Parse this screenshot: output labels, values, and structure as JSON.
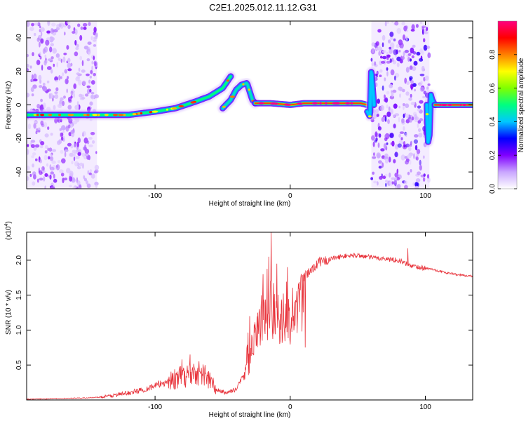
{
  "figure": {
    "title": "C2E1.2025.012.11.12.G31"
  },
  "chart_data": [
    {
      "type": "heatmap",
      "name": "spectrogram",
      "xlabel": "Height of straight line (km)",
      "ylabel": "Frequency (Hz)",
      "xlim": [
        -195,
        135
      ],
      "ylim": [
        -50,
        50
      ],
      "xticks": [
        -100,
        0,
        100
      ],
      "yticks": [
        -40,
        -20,
        0,
        20,
        40
      ],
      "grid": false,
      "colorbar": {
        "label": "Normalized spectral amplitude",
        "range": [
          0,
          1
        ],
        "ticks": [
          0.0,
          0.2,
          0.4,
          0.6,
          0.8
        ],
        "tick_labels": [
          "0.0",
          "0.2",
          "0.4",
          "0.6",
          "0.8"
        ],
        "colormap": [
          "#ffffff",
          "#c9a6ff",
          "#8000ff",
          "#0000ff",
          "#00c8ff",
          "#00ff80",
          "#80ff00",
          "#ffff00",
          "#ff8000",
          "#ff0000",
          "#ff0080"
        ]
      },
      "noise_regions": [
        {
          "x": [
            -195,
            -143
          ],
          "amplitude": 0.3
        },
        {
          "x": [
            60,
            103
          ],
          "amplitude": 0.4
        }
      ],
      "ridges": [
        {
          "x": [
            -195,
            -160,
            -140,
            -120,
            -100,
            -85,
            -70,
            -60,
            -50,
            -44
          ],
          "y": [
            -6,
            -6,
            -6,
            -6,
            -4,
            -2,
            2,
            5,
            10,
            17
          ],
          "amplitude": 0.5
        },
        {
          "x": [
            -50,
            -44,
            -40,
            -36,
            -32,
            -28,
            -26
          ],
          "y": [
            -2,
            3,
            9,
            12,
            13,
            3,
            1
          ],
          "amplitude": 0.45
        },
        {
          "x": [
            -26,
            -15,
            0,
            10,
            30,
            52,
            57
          ],
          "y": [
            1,
            1,
            0,
            1,
            1,
            1,
            0
          ],
          "amplitude": 0.85
        },
        {
          "x": [
            57,
            59,
            60,
            61,
            62
          ],
          "y": [
            -4,
            -7,
            22,
            10,
            0
          ],
          "amplitude": 0.4
        },
        {
          "x": [
            101,
            102,
            103,
            104,
            105,
            107
          ],
          "y": [
            0,
            -22,
            -18,
            6,
            3,
            0
          ],
          "amplitude": 0.4
        },
        {
          "x": [
            107,
            120,
            135
          ],
          "y": [
            0,
            0,
            0
          ],
          "amplitude": 0.95
        }
      ]
    },
    {
      "type": "line",
      "name": "snr",
      "xlabel": "Height of straight line (km)",
      "ylabel": "SNR (10 * v/v)",
      "y_multiplier_label": "(x10",
      "y_multiplier_exp": "4",
      "xlim": [
        -195,
        135
      ],
      "ylim": [
        0,
        2.4
      ],
      "xticks": [
        -100,
        0,
        100
      ],
      "yticks": [
        0.5,
        1.0,
        1.5,
        2.0
      ],
      "ytick_labels": [
        "0.5",
        "1.0",
        "1.5",
        "2.0"
      ],
      "grid": false,
      "series": [
        {
          "color": "#e8343c",
          "x": [
            -195,
            -170,
            -150,
            -135,
            -120,
            -110,
            -100,
            -90,
            -80,
            -70,
            -62,
            -55,
            -48,
            -40,
            -35,
            -32,
            -28,
            -25,
            -22,
            -20,
            -18,
            -15,
            -12,
            -10,
            -5,
            0,
            5,
            10,
            15,
            20,
            30,
            40,
            50,
            60,
            70,
            80,
            88,
            95,
            105,
            115,
            125,
            135
          ],
          "y": [
            0.01,
            0.02,
            0.03,
            0.05,
            0.1,
            0.14,
            0.2,
            0.27,
            0.33,
            0.4,
            0.35,
            0.15,
            0.1,
            0.15,
            0.35,
            0.5,
            0.9,
            1.1,
            1.35,
            1.45,
            1.5,
            1.55,
            1.55,
            1.5,
            1.35,
            1.4,
            1.6,
            1.75,
            1.85,
            1.95,
            2.02,
            2.06,
            2.07,
            2.04,
            2.02,
            2.0,
            1.93,
            1.9,
            1.87,
            1.82,
            1.79,
            1.77
          ]
        }
      ],
      "spikes": [
        {
          "x": -80,
          "y": 0.58
        },
        {
          "x": -74,
          "y": 0.65
        },
        {
          "x": -30,
          "y": 1.2
        },
        {
          "x": -20,
          "y": 1.8
        },
        {
          "x": -16,
          "y": 2.05
        },
        {
          "x": -14,
          "y": 2.4
        },
        {
          "x": -10,
          "y": 1.95
        },
        {
          "x": -2,
          "y": 1.9
        },
        {
          "x": 10,
          "y": 1.8
        },
        {
          "x": 11,
          "y": 0.75
        },
        {
          "x": 22,
          "y": 2.05
        },
        {
          "x": 87,
          "y": 2.17
        }
      ]
    }
  ]
}
